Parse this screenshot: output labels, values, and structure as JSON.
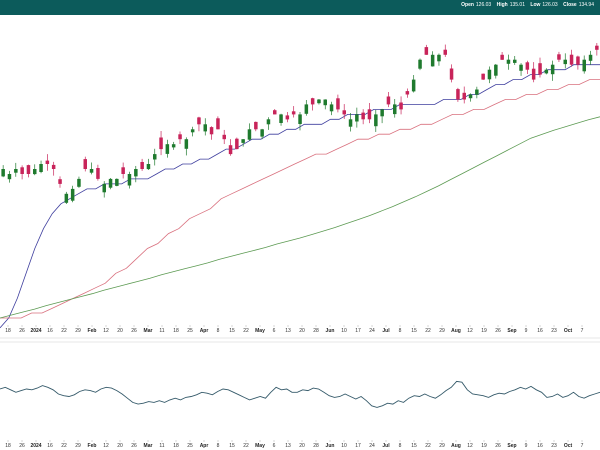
{
  "header": {
    "ohlc": [
      {
        "label": "Open",
        "value": "126.03"
      },
      {
        "label": "High",
        "value": "135.01"
      },
      {
        "label": "Low",
        "value": "126.03"
      },
      {
        "label": "Close",
        "value": "134.94"
      }
    ]
  },
  "colors": {
    "header_bg": "#0c5b5b",
    "up_candle": "#1f7a2e",
    "down_candle": "#c8245a",
    "ma_short": "#3e3e9e",
    "ma_mid": "#d9707e",
    "ma_long": "#5c9a52",
    "indicator_line": "#355a6a"
  },
  "chart_data": [
    {
      "type": "candlestick",
      "title": "",
      "price_range": [
        80,
        140
      ],
      "x_tick_labels": [
        {
          "text": "18",
          "bold": false
        },
        {
          "text": "26",
          "bold": false
        },
        {
          "text": "2024",
          "bold": true
        },
        {
          "text": "16",
          "bold": false
        },
        {
          "text": "22",
          "bold": false
        },
        {
          "text": "29",
          "bold": false
        },
        {
          "text": "Feb",
          "bold": true
        },
        {
          "text": "12",
          "bold": false
        },
        {
          "text": "20",
          "bold": false
        },
        {
          "text": "26",
          "bold": false
        },
        {
          "text": "Mar",
          "bold": true
        },
        {
          "text": "11",
          "bold": false
        },
        {
          "text": "18",
          "bold": false
        },
        {
          "text": "25",
          "bold": false
        },
        {
          "text": "Apr",
          "bold": true
        },
        {
          "text": "8",
          "bold": false
        },
        {
          "text": "15",
          "bold": false
        },
        {
          "text": "22",
          "bold": false
        },
        {
          "text": "May",
          "bold": true
        },
        {
          "text": "6",
          "bold": false
        },
        {
          "text": "13",
          "bold": false
        },
        {
          "text": "20",
          "bold": false
        },
        {
          "text": "28",
          "bold": false
        },
        {
          "text": "Jun",
          "bold": true
        },
        {
          "text": "10",
          "bold": false
        },
        {
          "text": "17",
          "bold": false
        },
        {
          "text": "24",
          "bold": false
        },
        {
          "text": "Jul",
          "bold": true
        },
        {
          "text": "8",
          "bold": false
        },
        {
          "text": "15",
          "bold": false
        },
        {
          "text": "22",
          "bold": false
        },
        {
          "text": "29",
          "bold": false
        },
        {
          "text": "Aug",
          "bold": true
        },
        {
          "text": "12",
          "bold": false
        },
        {
          "text": "19",
          "bold": false
        },
        {
          "text": "26",
          "bold": false
        },
        {
          "text": "Sep",
          "bold": true
        },
        {
          "text": "9",
          "bold": false
        },
        {
          "text": "16",
          "bold": false
        },
        {
          "text": "23",
          "bold": false
        },
        {
          "text": "Oct",
          "bold": true
        },
        {
          "text": "7",
          "bold": false
        }
      ],
      "candle_closes": [
        110,
        109,
        110,
        109,
        109,
        110,
        111,
        111,
        110,
        107,
        105,
        106,
        108,
        110,
        110,
        108,
        107,
        108,
        108,
        109,
        109,
        110,
        110,
        111,
        113,
        114,
        115,
        115,
        116,
        116,
        118,
        119,
        119,
        117,
        118,
        116,
        113,
        114,
        116,
        118,
        118,
        118,
        120,
        121,
        121,
        120,
        121,
        121,
        123,
        123,
        124,
        124,
        123,
        122,
        121,
        120,
        121,
        120,
        120,
        121,
        122,
        123,
        123,
        122,
        125,
        128,
        132,
        133,
        133,
        133,
        133,
        128,
        124,
        124,
        125,
        126,
        128,
        130,
        131,
        132,
        132,
        132,
        131,
        130,
        128,
        129,
        130,
        131,
        132,
        132,
        131,
        131,
        132,
        133,
        134
      ],
      "overlays": [
        {
          "name": "",
          "key": "ma_short",
          "values": [
            78,
            80,
            84,
            89,
            94,
            98,
            101,
            103,
            104,
            105,
            106,
            106,
            107,
            107,
            107,
            108,
            108,
            108,
            109,
            110,
            110,
            111,
            111,
            112,
            112,
            113,
            114,
            114,
            115,
            116,
            116,
            117,
            117,
            118,
            118,
            119,
            119,
            119,
            120,
            120,
            121,
            121,
            121,
            122,
            122,
            122,
            123,
            123,
            123,
            123,
            123,
            124,
            124,
            124,
            125,
            125,
            126,
            127,
            127,
            128,
            128,
            129,
            129,
            130,
            130,
            130,
            131,
            131,
            131,
            131
          ]
        },
        {
          "name": "",
          "key": "ma_mid",
          "values": [
            80,
            80,
            80,
            81,
            81,
            82,
            83,
            84,
            85,
            86,
            87,
            89,
            90,
            92,
            94,
            95,
            97,
            98,
            100,
            101,
            102,
            104,
            105,
            106,
            107,
            108,
            109,
            110,
            111,
            112,
            113,
            113,
            114,
            115,
            116,
            116,
            117,
            117,
            118,
            118,
            119,
            119,
            120,
            121,
            121,
            122,
            122,
            123,
            124,
            124,
            125,
            125,
            126,
            126,
            127,
            127,
            128,
            128
          ]
        },
        {
          "name": "",
          "key": "ma_long",
          "values": [
            80,
            80.6,
            81.2,
            81.8,
            82.5,
            83.1,
            83.7,
            84.3,
            84.9,
            85.6,
            86.2,
            86.8,
            87.4,
            88,
            88.7,
            89.3,
            89.9,
            90.5,
            91.1,
            91.8,
            92.4,
            93,
            93.6,
            94.2,
            94.9,
            95.5,
            96.1,
            96.8,
            97.5,
            98.2,
            99,
            99.8,
            100.6,
            101.5,
            102.4,
            103.4,
            104.4,
            105.5,
            106.6,
            107.8,
            109,
            110.2,
            111.4,
            112.6,
            113.8,
            115,
            116.2,
            117,
            117.8,
            118.5,
            119.2,
            119.9,
            120.5
          ]
        }
      ]
    },
    {
      "type": "line",
      "title": "",
      "y_range": [
        0,
        100
      ],
      "series": [
        {
          "name": "",
          "values": [
            56,
            58,
            55,
            52,
            54,
            56,
            55,
            57,
            60,
            58,
            55,
            50,
            48,
            47,
            49,
            53,
            55,
            54,
            52,
            56,
            58,
            57,
            54,
            50,
            45,
            40,
            38,
            39,
            41,
            40,
            42,
            40,
            43,
            45,
            43,
            46,
            47,
            49,
            52,
            51,
            49,
            53,
            56,
            55,
            52,
            49,
            46,
            43,
            45,
            47,
            45,
            52,
            58,
            55,
            56,
            52,
            52,
            55,
            54,
            57,
            56,
            52,
            48,
            46,
            47,
            50,
            47,
            44,
            47,
            42,
            36,
            34,
            36,
            39,
            38,
            42,
            40,
            45,
            48,
            47,
            50,
            47,
            45,
            49,
            54,
            58,
            65,
            64,
            55,
            50,
            49,
            48,
            46,
            49,
            51,
            50,
            53,
            55,
            58,
            56,
            59,
            55,
            52,
            46,
            47,
            50,
            46,
            48,
            52,
            47,
            45,
            48,
            50,
            52
          ]
        }
      ]
    }
  ]
}
